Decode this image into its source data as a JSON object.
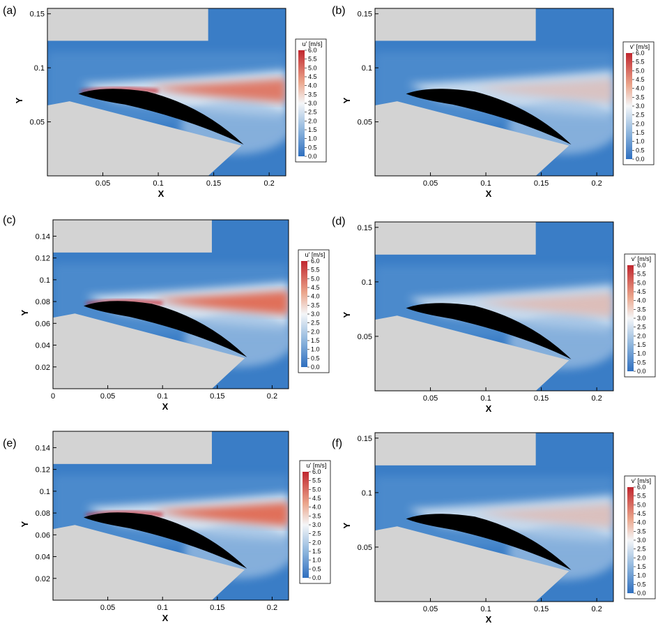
{
  "figure": {
    "colors": {
      "low": "#2f6fbf",
      "mid": "#f4f6f8",
      "high": "#c0262e",
      "solid_region": "#d3d3d3",
      "airfoil": "#000000"
    }
  },
  "chart_data": [
    {
      "type": "heatmap",
      "panel_label": "(a)",
      "xlabel": "X",
      "ylabel": "Y",
      "xlim": [
        0,
        0.215
      ],
      "ylim": [
        0.0,
        0.155
      ],
      "x_ticks": [
        0.05,
        0.1,
        0.15,
        0.2
      ],
      "x_tick_labels": [
        "0.05",
        "0.1",
        "0.15",
        "0.2"
      ],
      "y_ticks": [
        0.05,
        0.1,
        0.15
      ],
      "y_tick_labels": [
        "0.05",
        "0.1",
        "0.15"
      ],
      "colorbar": {
        "title": "u' [m/s]",
        "levels": [
          "6.0",
          "5.5",
          "5.0",
          "4.5",
          "4.0",
          "3.5",
          "3.0",
          "2.5",
          "2.0",
          "1.5",
          "1.0",
          "0.5",
          "0.0"
        ],
        "min": 0.0,
        "max": 6.0
      }
    },
    {
      "type": "heatmap",
      "panel_label": "(b)",
      "xlabel": "X",
      "ylabel": "Y",
      "xlim": [
        0,
        0.215
      ],
      "ylim": [
        0.0,
        0.155
      ],
      "x_ticks": [
        0.05,
        0.1,
        0.15,
        0.2
      ],
      "x_tick_labels": [
        "0.05",
        "0.1",
        "0.15",
        "0.2"
      ],
      "y_ticks": [
        0.05,
        0.1,
        0.15
      ],
      "y_tick_labels": [
        "0.05",
        "0.1",
        "0.15"
      ],
      "colorbar": {
        "title": "v' [m/s]",
        "levels": [
          "6.0",
          "5.5",
          "5.0",
          "4.5",
          "4.0",
          "3.5",
          "3.0",
          "2.5",
          "2.0",
          "1.5",
          "1.0",
          "0.5",
          "0.0"
        ],
        "min": 0.0,
        "max": 6.0
      }
    },
    {
      "type": "heatmap",
      "panel_label": "(c)",
      "xlabel": "X",
      "ylabel": "Y",
      "xlim": [
        0,
        0.215
      ],
      "ylim": [
        0.0,
        0.155
      ],
      "x_ticks": [
        0,
        0.05,
        0.1,
        0.15,
        0.2
      ],
      "x_tick_labels": [
        "0",
        "0.05",
        "0.1",
        "0.15",
        "0.2"
      ],
      "y_ticks": [
        0.02,
        0.04,
        0.06,
        0.08,
        0.1,
        0.12,
        0.14
      ],
      "y_tick_labels": [
        "0.02",
        "0.04",
        "0.06",
        "0.08",
        "0.1",
        "0.12",
        "0.14"
      ],
      "colorbar": {
        "title": "u' [m/s]",
        "levels": [
          "6.0",
          "5.5",
          "5.0",
          "4.5",
          "4.0",
          "3.5",
          "3.0",
          "2.5",
          "2.0",
          "1.5",
          "1.0",
          "0.5",
          "0.0"
        ],
        "min": 0.0,
        "max": 6.0
      }
    },
    {
      "type": "heatmap",
      "panel_label": "(d)",
      "xlabel": "X",
      "ylabel": "Y",
      "xlim": [
        0,
        0.215
      ],
      "ylim": [
        0.0,
        0.155
      ],
      "x_ticks": [
        0.05,
        0.1,
        0.15,
        0.2
      ],
      "x_tick_labels": [
        "0.05",
        "0.1",
        "0.15",
        "0.2"
      ],
      "y_ticks": [
        0.05,
        0.1,
        0.15
      ],
      "y_tick_labels": [
        "0.05",
        "0.1",
        "0.15"
      ],
      "colorbar": {
        "title": "v' [m/s]",
        "levels": [
          "6.0",
          "5.5",
          "5.0",
          "4.5",
          "4.0",
          "3.5",
          "3.0",
          "2.5",
          "2.0",
          "1.5",
          "1.0",
          "0.5",
          "0.0"
        ],
        "min": 0.0,
        "max": 6.0
      }
    },
    {
      "type": "heatmap",
      "panel_label": "(e)",
      "xlabel": "X",
      "ylabel": "Y",
      "xlim": [
        0,
        0.215
      ],
      "ylim": [
        0.0,
        0.155
      ],
      "x_ticks": [
        0.05,
        0.1,
        0.15,
        0.2
      ],
      "x_tick_labels": [
        "0.05",
        "0.1",
        "0.15",
        "0.2"
      ],
      "y_ticks": [
        0.02,
        0.04,
        0.06,
        0.08,
        0.1,
        0.12,
        0.14
      ],
      "y_tick_labels": [
        "0.02",
        "0.04",
        "0.06",
        "0.08",
        "0.1",
        "0.12",
        "0.14"
      ],
      "colorbar": {
        "title": "u' [m/s]",
        "levels": [
          "6.0",
          "5.5",
          "5.0",
          "4.5",
          "4.0",
          "3.5",
          "3.0",
          "2.5",
          "2.0",
          "1.5",
          "1.0",
          "0.5",
          "0.0"
        ],
        "min": 0.0,
        "max": 6.0
      }
    },
    {
      "type": "heatmap",
      "panel_label": "(f)",
      "xlabel": "X",
      "ylabel": "Y",
      "xlim": [
        0,
        0.215
      ],
      "ylim": [
        0.0,
        0.155
      ],
      "x_ticks": [
        0.05,
        0.1,
        0.15,
        0.2
      ],
      "x_tick_labels": [
        "0.05",
        "0.1",
        "0.15",
        "0.2"
      ],
      "y_ticks": [
        0.05,
        0.1,
        0.15
      ],
      "y_tick_labels": [
        "0.05",
        "0.1",
        "0.15"
      ],
      "colorbar": {
        "title": "v' [m/s]",
        "levels": [
          "6.0",
          "5.5",
          "5.0",
          "4.5",
          "4.0",
          "3.5",
          "3.0",
          "2.5",
          "2.0",
          "1.5",
          "1.0",
          "0.5",
          "0.0"
        ],
        "min": 0.0,
        "max": 6.0
      }
    }
  ]
}
